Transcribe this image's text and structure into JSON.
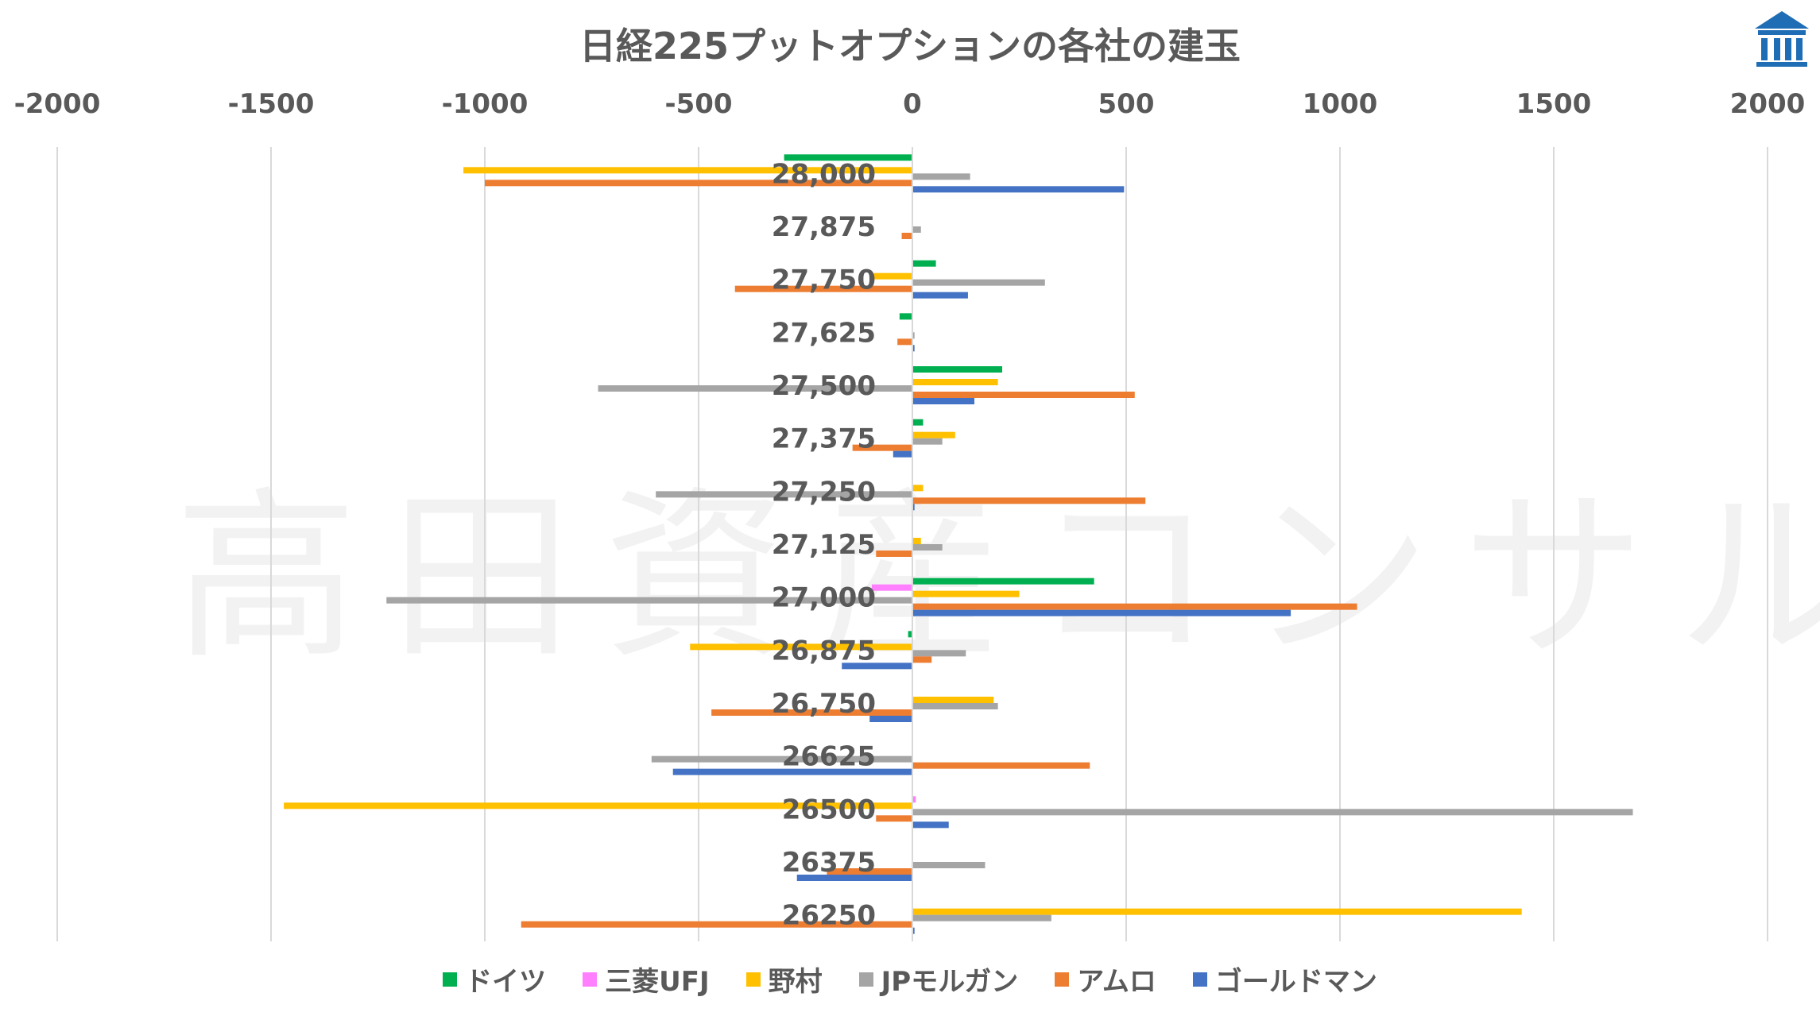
{
  "chart_data": {
    "type": "bar",
    "orientation": "horizontal",
    "title": "日経225プットオプションの各社の建玉",
    "watermark": "高田資産コンサル",
    "xlim": [
      -2000,
      2000
    ],
    "xticks": [
      "-2000",
      "-1500",
      "-1000",
      "-500",
      "0",
      "500",
      "1000",
      "1500",
      "2000"
    ],
    "xtick_values": [
      -2000,
      -1500,
      -1000,
      -500,
      0,
      500,
      1000,
      1500,
      2000
    ],
    "grid": "vertical",
    "legend_position": "bottom",
    "categories": [
      "28,000",
      "27,875",
      "27,750",
      "27,625",
      "27,500",
      "27,375",
      "27,250",
      "27,125",
      "27,000",
      "26,875",
      "26,750",
      "26625",
      "26500",
      "26375",
      "26250"
    ],
    "series": [
      {
        "name": "ドイツ",
        "color": "#00b050",
        "values": [
          -300,
          0,
          55,
          -30,
          210,
          25,
          0,
          0,
          425,
          -10,
          0,
          0,
          0,
          0,
          0
        ]
      },
      {
        "name": "三菱UFJ",
        "color": "#ff7fff",
        "values": [
          0,
          0,
          0,
          0,
          0,
          0,
          0,
          0,
          -95,
          0,
          0,
          0,
          8,
          0,
          0
        ]
      },
      {
        "name": "野村",
        "color": "#ffc000",
        "values": [
          -1050,
          0,
          -90,
          0,
          200,
          100,
          25,
          20,
          250,
          -520,
          190,
          0,
          -1470,
          0,
          1425
        ]
      },
      {
        "name": "JPモルガン",
        "color": "#a5a5a5",
        "values": [
          135,
          20,
          310,
          5,
          -735,
          70,
          -600,
          70,
          -1230,
          125,
          200,
          -610,
          1685,
          170,
          325
        ]
      },
      {
        "name": "アムロ",
        "color": "#ed7d31",
        "values": [
          -1000,
          -25,
          -415,
          -35,
          520,
          -140,
          545,
          -85,
          1040,
          45,
          -470,
          415,
          -85,
          -200,
          -915
        ]
      },
      {
        "name": "ゴールドマン",
        "color": "#4472c4",
        "values": [
          495,
          0,
          130,
          5,
          145,
          -45,
          5,
          0,
          885,
          -165,
          -100,
          -560,
          85,
          -270,
          5
        ]
      }
    ]
  },
  "logo_icon": "bank-pillar-icon"
}
